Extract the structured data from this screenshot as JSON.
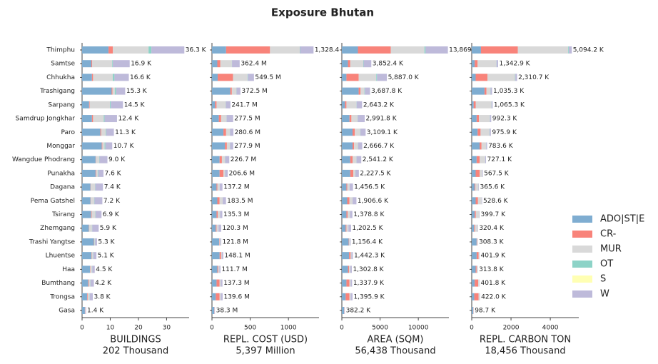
{
  "title": "Exposure Bhutan",
  "chart_data": [
    {
      "type": "bar",
      "orientation": "horizontal",
      "xlabel": "BUILDINGS",
      "subtitle": "202 Thousand",
      "categories": [
        "Thimphu",
        "Samtse",
        "Chhukha",
        "Trashigang",
        "Sarpang",
        "Samdrup Jongkhar",
        "Paro",
        "Monggar",
        "Wangdue Phodrang",
        "Punakha",
        "Dagana",
        "Pema Gatshel",
        "Tsirang",
        "Zhemgang",
        "Trashi Yangtse",
        "Lhuentse",
        "Haa",
        "Bumthang",
        "Trongsa",
        "Gasa"
      ],
      "series": [
        {
          "name": "ADO|ST|E",
          "color": "#7fadd1",
          "values": [
            9.4,
            3.3,
            3.5,
            10.5,
            2.5,
            3.5,
            6.5,
            7.0,
            4.8,
            4.8,
            3.0,
            3.0,
            3.2,
            2.4,
            4.2,
            3.3,
            2.8,
            2.2,
            1.8,
            1.0
          ]
        },
        {
          "name": "CR-",
          "color": "#f8837a",
          "values": [
            1.5,
            0.3,
            0.4,
            0.3,
            0.2,
            0.4,
            0.3,
            0.2,
            0.1,
            0.2,
            0.1,
            0.1,
            0.2,
            0.1,
            0.1,
            0.1,
            0.1,
            0.2,
            0.2,
            0.1
          ]
        },
        {
          "name": "MUR",
          "color": "#d9d9d9",
          "values": [
            12.7,
            7.1,
            7.0,
            0.8,
            7.2,
            3.8,
            1.6,
            0.8,
            1.2,
            0.6,
            1.5,
            1.2,
            1.3,
            1.0,
            0.2,
            0.5,
            0.6,
            0.5,
            0.6,
            0.1
          ]
        },
        {
          "name": "OT",
          "color": "#8dd3c7",
          "values": [
            1.0,
            0.2,
            0.6,
            0.5,
            0.3,
            0.3,
            0.2,
            0.3,
            0.1,
            0.2,
            0.1,
            0.1,
            0.1,
            0.1,
            0.1,
            0.1,
            0.1,
            0.1,
            0.1,
            0
          ]
        },
        {
          "name": "S",
          "color": "#ffffb3",
          "values": [
            0,
            0,
            0,
            0,
            0,
            0,
            0,
            0,
            0,
            0,
            0,
            0,
            0,
            0,
            0,
            0,
            0,
            0,
            0,
            0
          ]
        },
        {
          "name": "W",
          "color": "#bebada",
          "values": [
            11.7,
            6.0,
            5.1,
            3.2,
            4.3,
            4.4,
            2.7,
            2.4,
            2.8,
            1.8,
            2.7,
            2.8,
            2.1,
            2.3,
            0.7,
            1.1,
            0.9,
            1.2,
            1.1,
            0.2
          ]
        }
      ],
      "totals": [
        36.3,
        16.9,
        16.6,
        15.3,
        14.5,
        12.4,
        11.3,
        10.7,
        9.0,
        7.6,
        7.4,
        7.2,
        6.9,
        5.9,
        5.3,
        5.1,
        4.5,
        4.2,
        3.8,
        1.4
      ],
      "value_labels": [
        "36.3 K",
        "16.9 K",
        "16.6 K",
        "15.3 K",
        "14.5 K",
        "12.4 K",
        "11.3 K",
        "10.7 K",
        "9.0 K",
        "7.6 K",
        "7.4 K",
        "7.2 K",
        "6.9 K",
        "5.9 K",
        "5.3 K",
        "5.1 K",
        "4.5 K",
        "4.2 K",
        "3.8 K",
        "1.4 K"
      ],
      "xlim": [
        0,
        38
      ],
      "xticks": [
        0,
        10,
        20,
        30
      ]
    },
    {
      "type": "bar",
      "orientation": "horizontal",
      "xlabel": "REPL. COST (USD)",
      "subtitle": "5,397 Million",
      "series": [
        {
          "values": [
            185,
            70,
            75,
            240,
            40,
            90,
            150,
            170,
            100,
            100,
            60,
            70,
            60,
            50,
            95,
            100,
            70,
            60,
            50,
            30
          ]
        },
        {
          "values": [
            574,
            40,
            200,
            20,
            20,
            30,
            35,
            25,
            30,
            50,
            10,
            30,
            15,
            10,
            5,
            20,
            10,
            40,
            50,
            2
          ]
        },
        {
          "values": [
            389,
            150,
            190,
            60,
            120,
            70,
            50,
            40,
            40,
            20,
            30,
            40,
            30,
            25,
            10,
            10,
            15,
            15,
            15,
            2
          ]
        },
        {
          "values": [
            5,
            2,
            5,
            2,
            2,
            2,
            2,
            2,
            2,
            2,
            1,
            1,
            1,
            1,
            1,
            1,
            1,
            1,
            1,
            0
          ]
        },
        {
          "values": [
            0,
            0,
            0,
            0,
            0,
            0,
            0,
            0,
            0,
            0,
            0,
            0,
            0,
            0,
            0,
            0,
            0,
            0,
            0,
            0
          ]
        },
        {
          "values": [
            175.4,
            100.4,
            79.5,
            50.5,
            59.7,
            85.5,
            43.6,
            40.9,
            54.7,
            34.6,
            36.2,
            42.5,
            29.3,
            34.3,
            10.8,
            17.1,
            15.7,
            21.3,
            23.6,
            4.3
          ]
        }
      ],
      "totals": [
        1328.4,
        362.4,
        549.5,
        372.5,
        241.7,
        277.5,
        280.6,
        277.9,
        226.7,
        206.6,
        137.2,
        183.5,
        135.3,
        120.3,
        121.8,
        148.1,
        111.7,
        137.3,
        139.6,
        38.3
      ],
      "value_labels": [
        "1,328.4",
        "362.4 M",
        "549.5 M",
        "372.5 M",
        "241.7 M",
        "277.5 M",
        "280.6 M",
        "277.9 M",
        "226.7 M",
        "206.6 M",
        "137.2 M",
        "183.5 M",
        "135.3 M",
        "120.3 M",
        "121.8 M",
        "148.1 M",
        "111.7 M",
        "137.3 M",
        "139.6 M",
        "38.3 M"
      ],
      "xlim": [
        0,
        1400
      ],
      "xticks": [
        0,
        500,
        1000
      ]
    },
    {
      "type": "bar",
      "orientation": "horizontal",
      "xlabel": "AREA (SQM)",
      "subtitle": "56,438 Thousand",
      "series": [
        {
          "values": [
            2100,
            800,
            600,
            2200,
            400,
            1000,
            1400,
            1400,
            1100,
            1100,
            600,
            700,
            600,
            500,
            900,
            950,
            800,
            600,
            500,
            300
          ]
        },
        {
          "values": [
            4300,
            300,
            1600,
            250,
            200,
            250,
            300,
            200,
            300,
            400,
            100,
            300,
            150,
            100,
            50,
            200,
            150,
            400,
            500,
            20
          ]
        },
        {
          "values": [
            4400,
            1700,
            2300,
            500,
            1300,
            800,
            700,
            500,
            500,
            250,
            300,
            400,
            300,
            250,
            100,
            100,
            150,
            150,
            150,
            20
          ]
        },
        {
          "values": [
            150,
            50,
            100,
            50,
            30,
            30,
            30,
            30,
            20,
            20,
            10,
            10,
            10,
            10,
            10,
            10,
            10,
            10,
            10,
            0
          ]
        },
        {
          "values": [
            0,
            0,
            0,
            0,
            0,
            0,
            0,
            0,
            0,
            0,
            0,
            0,
            0,
            0,
            0,
            0,
            0,
            0,
            0,
            0
          ]
        },
        {
          "values": [
            2919,
            1002.4,
            1287.0,
            687.8,
            713.2,
            911.8,
            679.1,
            536.7,
            621.2,
            457.5,
            446.5,
            496.6,
            318.8,
            342.5,
            96.4,
            182.3,
            192.8,
            177.9,
            235.9,
            42.2
          ]
        }
      ],
      "totals": [
        13869,
        3852.4,
        5887.0,
        3687.8,
        2643.2,
        2991.8,
        3109.1,
        2666.7,
        2541.2,
        2227.5,
        1456.5,
        1906.6,
        1378.8,
        1202.5,
        1156.4,
        1442.3,
        1302.8,
        1337.9,
        1395.9,
        382.2
      ],
      "value_labels": [
        "13,869",
        "3,852.4 K",
        "5,887.0 K",
        "3,687.8 K",
        "2,643.2 K",
        "2,991.8 K",
        "3,109.1 K",
        "2,666.7 K",
        "2,541.2 K",
        "2,227.5 K",
        "1,456.5 K",
        "1,906.6 K",
        "1,378.8 K",
        "1,202.5 K",
        "1,156.4 K",
        "1,442.3 K",
        "1,302.8 K",
        "1,337.9 K",
        "1,395.9 K",
        "382.2 K"
      ],
      "xlim": [
        0,
        14000
      ],
      "xticks": [
        0,
        5000,
        10000
      ]
    },
    {
      "type": "bar",
      "orientation": "horizontal",
      "xlabel": "REPL. CARBON TON",
      "subtitle": "18,456 Thousand",
      "series": [
        {
          "values": [
            470,
            150,
            200,
            650,
            100,
            250,
            300,
            400,
            250,
            200,
            150,
            200,
            150,
            120,
            250,
            250,
            200,
            150,
            130,
            80
          ]
        },
        {
          "values": [
            1880,
            150,
            600,
            100,
            100,
            120,
            150,
            100,
            150,
            200,
            40,
            120,
            60,
            40,
            20,
            100,
            50,
            180,
            220,
            8
          ]
        },
        {
          "values": [
            2560,
            950,
            1400,
            200,
            800,
            550,
            450,
            230,
            280,
            130,
            150,
            180,
            170,
            140,
            30,
            40,
            55,
            60,
            60,
            8
          ]
        },
        {
          "values": [
            30,
            10,
            20,
            10,
            10,
            10,
            10,
            5,
            5,
            5,
            2,
            3,
            2,
            2,
            2,
            2,
            2,
            2,
            2,
            0
          ]
        },
        {
          "values": [
            0,
            0,
            0,
            0,
            0,
            0,
            0,
            0,
            0,
            0,
            0,
            0,
            0,
            0,
            0,
            0,
            0,
            0,
            0,
            0
          ]
        },
        {
          "values": [
            154.2,
            82.9,
            90.7,
            75.3,
            55.3,
            62.3,
            65.9,
            48.6,
            42.1,
            32.5,
            23.6,
            25.6,
            17.7,
            18.4,
            6.3,
            9.9,
            6.8,
            9.8,
            10.0,
            2.7
          ]
        }
      ],
      "totals": [
        5094.2,
        1342.9,
        2310.7,
        1035.3,
        1065.3,
        992.3,
        975.9,
        783.6,
        727.1,
        567.5,
        365.6,
        528.6,
        399.7,
        320.4,
        308.3,
        401.9,
        313.8,
        401.8,
        422.0,
        98.7
      ],
      "value_labels": [
        "5,094.2 K",
        "1,342.9 K",
        "2,310.7 K",
        "1,035.3 K",
        "1,065.3 K",
        "992.3 K",
        "975.9 K",
        "783.6 K",
        "727.1 K",
        "567.5 K",
        "365.6 K",
        "528.6 K",
        "399.7 K",
        "320.4 K",
        "308.3 K",
        "401.9 K",
        "313.8 K",
        "401.8 K",
        "422.0 K",
        "98.7 K"
      ],
      "xlim": [
        0,
        5450
      ],
      "xticks": [
        0,
        2000,
        4000
      ]
    }
  ]
}
